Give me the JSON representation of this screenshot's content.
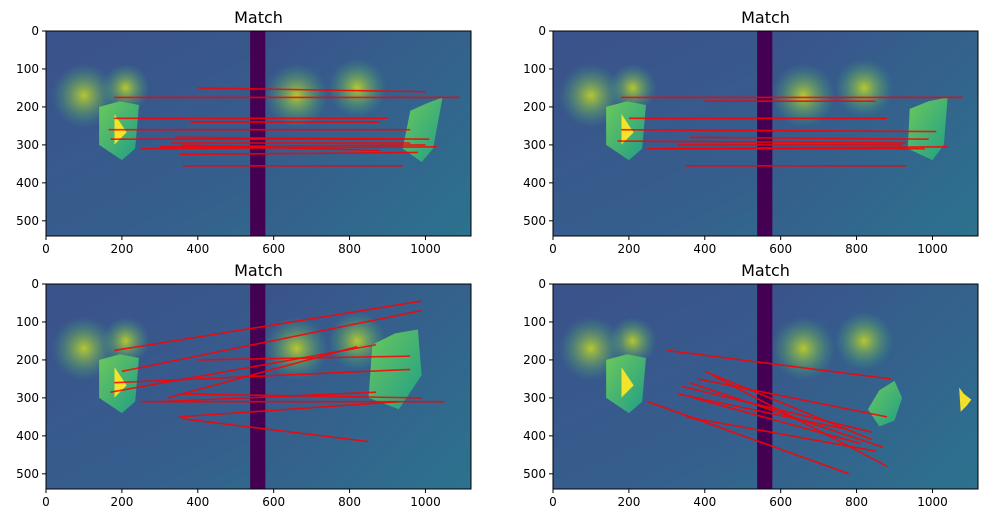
{
  "chart_data": [
    {
      "type": "image",
      "title": "Match",
      "xlim": [
        0,
        1120
      ],
      "ylim": [
        540,
        0
      ],
      "xticks": [
        0,
        200,
        400,
        600,
        800,
        1000
      ],
      "yticks": [
        0,
        100,
        200,
        300,
        400,
        500
      ],
      "panes": [
        {
          "objects": [
            {
              "poly": [
                [
                  140,
                  200
                ],
                [
                  195,
                  185
                ],
                [
                  245,
                  195
                ],
                [
                  235,
                  310
                ],
                [
                  200,
                  340
                ],
                [
                  140,
                  300
                ]
              ],
              "blob": [
                [
                  60,
                  30
                ],
                [
                  80,
                  60
                ],
                [
                  100,
                  90
                ],
                [
                  60,
                  130
                ]
              ]
            },
            {
              "poly": [
                [
                  400,
                  210
                ],
                [
                  445,
                  190
                ],
                [
                  485,
                  175
                ],
                [
                  460,
                  310
                ],
                [
                  430,
                  345
                ],
                [
                  380,
                  310
                ]
              ],
              "blob": [
                [
                  315,
                  30
                ],
                [
                  325,
                  60
                ],
                [
                  345,
                  85
                ],
                [
                  330,
                  110
                ],
                [
                  310,
                  130
                ]
              ]
            }
          ]
        },
        {
          "objects": [
            {
              "poly": [
                [
                  140,
                  200
                ],
                [
                  195,
                  185
                ],
                [
                  245,
                  195
                ],
                [
                  235,
                  310
                ],
                [
                  200,
                  340
                ],
                [
                  140,
                  300
                ]
              ],
              "blob": [
                [
                  60,
                  30
                ],
                [
                  80,
                  60
                ],
                [
                  100,
                  90
                ],
                [
                  60,
                  130
                ]
              ]
            },
            {
              "poly": [
                [
                  380,
                  205
                ],
                [
                  430,
                  185
                ],
                [
                  480,
                  175
                ],
                [
                  470,
                  300
                ],
                [
                  440,
                  340
                ],
                [
                  375,
                  310
                ]
              ],
              "blob": [
                [
                  330,
                  28
                ],
                [
                  345,
                  60
                ],
                [
                  355,
                  85
                ],
                [
                  340,
                  110
                ],
                [
                  310,
                  130
                ]
              ]
            }
          ]
        },
        {
          "objects": [
            {
              "poly": [
                [
                  140,
                  200
                ],
                [
                  195,
                  185
                ],
                [
                  245,
                  195
                ],
                [
                  235,
                  310
                ],
                [
                  200,
                  340
                ],
                [
                  140,
                  300
                ]
              ],
              "blob": [
                [
                  60,
                  30
                ],
                [
                  80,
                  60
                ],
                [
                  100,
                  90
                ],
                [
                  60,
                  130
                ]
              ]
            },
            {
              "poly": [
                [
                  300,
                  160
                ],
                [
                  360,
                  130
                ],
                [
                  420,
                  120
                ],
                [
                  430,
                  240
                ],
                [
                  370,
                  330
                ],
                [
                  290,
                  300
                ]
              ],
              "blob": [
                [
                  335,
                  30
                ],
                [
                  355,
                  70
                ],
                [
                  360,
                  100
                ],
                [
                  350,
                  130
                ],
                [
                  330,
                  160
                ]
              ]
            }
          ]
        },
        {
          "objects": [
            {
              "poly": [
                [
                  140,
                  200
                ],
                [
                  195,
                  185
                ],
                [
                  245,
                  195
                ],
                [
                  235,
                  310
                ],
                [
                  200,
                  340
                ],
                [
                  140,
                  300
                ]
              ],
              "blob": [
                [
                  60,
                  30
                ],
                [
                  80,
                  60
                ],
                [
                  100,
                  90
                ],
                [
                  60,
                  130
                ]
              ]
            },
            {
              "poly": [
                [
                  300,
                  280
                ],
                [
                  340,
                  255
                ],
                [
                  360,
                  300
                ],
                [
                  340,
                  360
                ],
                [
                  300,
                  375
                ],
                [
                  270,
                  330
                ]
              ],
              "blob": [
                [
                  315,
                  20
                ],
                [
                  330,
                  40
                ],
                [
                  355,
                  60
                ],
                [
                  340,
                  80
                ],
                [
                  320,
                  100
                ]
              ]
            }
          ]
        }
      ]
    },
    {
      "type": "image",
      "title": "Match",
      "xlim": [
        0,
        1120
      ],
      "ylim": [
        540,
        0
      ],
      "xticks": [
        0,
        200,
        400,
        600,
        800,
        1000
      ],
      "yticks": [
        0,
        100,
        200,
        300,
        400,
        500
      ]
    },
    {
      "type": "image",
      "title": "Match",
      "xlim": [
        0,
        1120
      ],
      "ylim": [
        540,
        0
      ],
      "xticks": [
        0,
        200,
        400,
        600,
        800,
        1000
      ],
      "yticks": [
        0,
        100,
        200,
        300,
        400,
        500
      ]
    },
    {
      "type": "image",
      "title": "Match",
      "xlim": [
        0,
        1120
      ],
      "ylim": [
        540,
        0
      ],
      "xticks": [
        0,
        200,
        400,
        600,
        800,
        1000
      ],
      "yticks": [
        0,
        100,
        200,
        300,
        400,
        500
      ]
    }
  ],
  "colors": {
    "bg_left": "#3e4a89",
    "bg_mid": "#355f8d",
    "bg_right": "#31688e",
    "bright": "#2a788e",
    "green": "#35b779",
    "lime": "#90d743",
    "yellow": "#fde725",
    "divider": "#440154",
    "line": "#ff0000"
  }
}
